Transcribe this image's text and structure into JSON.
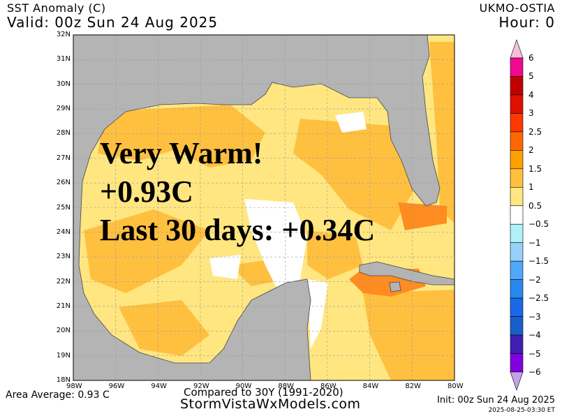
{
  "header": {
    "title": "SST Anomaly (C)",
    "valid": "Valid: 00z Sun 24 Aug 2025",
    "model": "UKMO-OSTIA",
    "hour": "Hour: 0"
  },
  "overlay": {
    "line1": "Very Warm!",
    "line2": "+0.93C",
    "line3": "Last 30 days: +0.34C"
  },
  "map": {
    "lat_labels": [
      "32N",
      "31N",
      "30N",
      "29N",
      "28N",
      "27N",
      "26N",
      "25N",
      "24N",
      "23N",
      "22N",
      "21N",
      "20N",
      "19N",
      "18N"
    ],
    "lon_labels": [
      "98W",
      "96W",
      "94W",
      "92W",
      "90W",
      "88W",
      "86W",
      "84W",
      "82W",
      "80W"
    ],
    "colors": {
      "land": "#b4b4b4",
      "ocean_base": "#ffe680",
      "ocean_warm": "#ffc040",
      "ocean_warmer": "#ffa000",
      "hot": "#ff6800",
      "neutral": "#ffffff"
    }
  },
  "colorbar": {
    "labels": [
      "6",
      "5",
      "4",
      "3",
      "2.5",
      "2",
      "1.5",
      "1",
      "0.5",
      "-0.5",
      "-1",
      "-1.5",
      "-2",
      "-2.5",
      "-3",
      "-4",
      "-5",
      "-6"
    ],
    "colors": [
      "#f00890",
      "#c00000",
      "#e01000",
      "#ff3800",
      "#ff6800",
      "#ffa000",
      "#ffc040",
      "#ffe680",
      "#ffffff",
      "#b0f0f8",
      "#98d0f8",
      "#50a8f8",
      "#2888f0",
      "#1868e8",
      "#1860c8",
      "#4020b0",
      "#8000e0"
    ],
    "over_color": "#f8c0d8",
    "under_color": "#c8a0e8"
  },
  "footer": {
    "area_average": "Area Average: 0.93 C",
    "compared": "Compared to 30Y (1991-2020)",
    "site": "StormVistaWxModels.com",
    "init": "Init: 00z Sun 24 Aug 2025",
    "timestamp": "2025-08-25-03:30 ET"
  }
}
